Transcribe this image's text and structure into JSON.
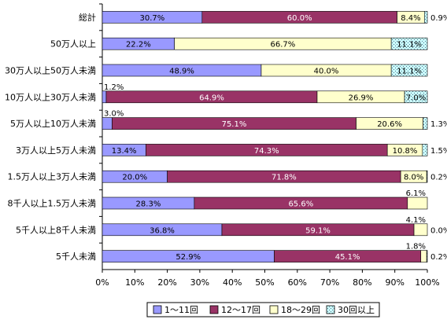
{
  "chart_data": {
    "type": "bar",
    "orientation": "horizontal",
    "stacked": "percent",
    "categories": [
      "総計",
      "50万人以上",
      "30万人以上50万人未満",
      "10万人以上30万人未満",
      "5万人以上10万人未満",
      "3万人以上5万人未満",
      "1.5万人以上3万人未満",
      "8千人以上1.5万人未満",
      "5千人以上8千人未満",
      "5千人未満"
    ],
    "series": [
      {
        "name": "1～11回",
        "color": "#9999ff",
        "pattern": "none",
        "values": [
          30.7,
          22.2,
          48.9,
          1.2,
          3.0,
          13.4,
          20.0,
          28.3,
          36.8,
          52.9
        ],
        "labels": [
          "30.7%",
          "22.2%",
          "48.9%",
          "1.2%",
          "3.0%",
          "13.4%",
          "20.0%",
          "28.3%",
          "36.8%",
          "52.9%"
        ]
      },
      {
        "name": "12～17回",
        "color": "#993366",
        "pattern": "none",
        "values": [
          60.0,
          0,
          0,
          64.9,
          75.1,
          74.3,
          71.8,
          65.6,
          59.1,
          45.1
        ],
        "labels": [
          "60.0%",
          "",
          "",
          "64.9%",
          "75.1%",
          "74.3%",
          "71.8%",
          "65.6%",
          "59.1%",
          "45.1%"
        ]
      },
      {
        "name": "18～29回",
        "color": "#ffffcc",
        "pattern": "none",
        "values": [
          8.4,
          66.7,
          40.0,
          26.9,
          20.6,
          10.8,
          8.0,
          6.1,
          4.1,
          1.8
        ],
        "labels": [
          "8.4%",
          "66.7%",
          "40.0%",
          "26.9%",
          "20.6%",
          "10.8%",
          "8.0%",
          "6.1%",
          "4.1%",
          "1.8%"
        ]
      },
      {
        "name": "30回以上",
        "color": "#ccffff",
        "pattern": "dots",
        "values": [
          0.9,
          11.1,
          11.1,
          7.0,
          1.3,
          1.5,
          0.2,
          0,
          0.0,
          0.2
        ],
        "labels": [
          "0.9%",
          "11.1%",
          "11.1%",
          "7.0%",
          "1.3%",
          "1.5%",
          "0.2%",
          "",
          "0.0%",
          "0.2%"
        ]
      }
    ],
    "xlim": [
      0,
      100
    ],
    "x_ticks": [
      "0%",
      "10%",
      "20%",
      "30%",
      "40%",
      "50%",
      "60%",
      "70%",
      "80%",
      "90%",
      "100%"
    ],
    "grid": false,
    "legend_position": "bottom"
  }
}
